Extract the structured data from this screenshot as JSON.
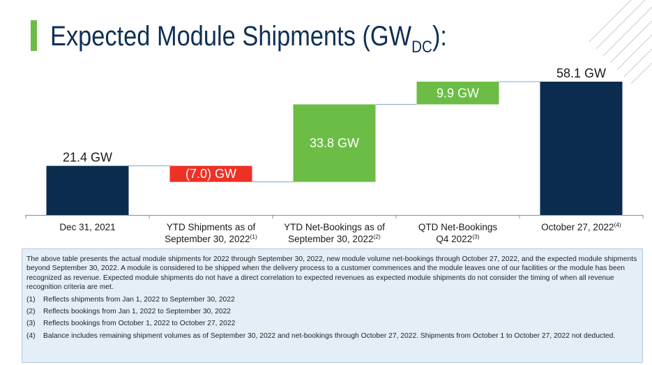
{
  "title": {
    "main": "Expected Module Shipments (GW",
    "subscript": "DC",
    "suffix": "):"
  },
  "colors": {
    "navy": "#0b2c4f",
    "green": "#6cbd45",
    "red": "#ee3124",
    "title": "#0f2f55",
    "accent": "#6cbd45"
  },
  "chart_data": {
    "type": "waterfall",
    "unit": "GW",
    "categories": [
      {
        "line1": "Dec 31, 2021",
        "line2": "",
        "sup": ""
      },
      {
        "line1": "YTD Shipments as of",
        "line2": "September 30, 2022",
        "sup": "(1)"
      },
      {
        "line1": "YTD Net-Bookings as of",
        "line2": "September 30, 2022",
        "sup": "(2)"
      },
      {
        "line1": "QTD Net-Bookings",
        "line2": "Q4 2022",
        "sup": "(3)"
      },
      {
        "line1": "October 27, 2022",
        "line2": "",
        "sup": "(4)"
      }
    ],
    "bars": [
      {
        "kind": "total",
        "start": 0,
        "end": 21.4,
        "value": 21.4,
        "label": "21.4 GW",
        "label_position": "above",
        "color": "#0b2c4f"
      },
      {
        "kind": "decrease",
        "start": 21.4,
        "end": 14.4,
        "value": -7.0,
        "label": "(7.0) GW",
        "label_position": "inside",
        "color": "#ee3124"
      },
      {
        "kind": "increase",
        "start": 14.4,
        "end": 48.2,
        "value": 33.8,
        "label": "33.8 GW",
        "label_position": "inside",
        "color": "#6cbd45"
      },
      {
        "kind": "increase",
        "start": 48.2,
        "end": 58.1,
        "value": 9.9,
        "label": "9.9 GW",
        "label_position": "inside",
        "color": "#6cbd45"
      },
      {
        "kind": "total",
        "start": 0,
        "end": 58.1,
        "value": 58.1,
        "label": "58.1 GW",
        "label_position": "above",
        "color": "#0b2c4f"
      }
    ],
    "connectors": true,
    "ylim": [
      0,
      58.1
    ],
    "grid": false,
    "legend": "none"
  },
  "notes": {
    "intro": "The above table presents the actual module shipments for 2022 through September 30, 2022, new module volume net-bookings through October 27, 2022, and the expected module shipments beyond September 30, 2022. A module is considered to be shipped when the delivery process to a customer commences and the module leaves one of our facilities or the module has been recognized as revenue. Expected module shipments do not have a direct correlation to expected revenues as expected module shipments do not consider the timing of when all revenue recognition criteria are met.",
    "footnotes": [
      {
        "num": "(1)",
        "text": "Reflects shipments from Jan 1, 2022 to September 30, 2022"
      },
      {
        "num": "(2)",
        "text": "Reflects bookings from Jan 1, 2022 to September 30, 2022"
      },
      {
        "num": "(3)",
        "text": "Reflects bookings from October 1, 2022 to October 27, 2022"
      },
      {
        "num": "(4)",
        "text": "Balance includes remaining shipment volumes as of September 30, 2022 and net-bookings through October 27, 2022. Shipments from October 1 to October 27, 2022 not deducted."
      }
    ]
  }
}
